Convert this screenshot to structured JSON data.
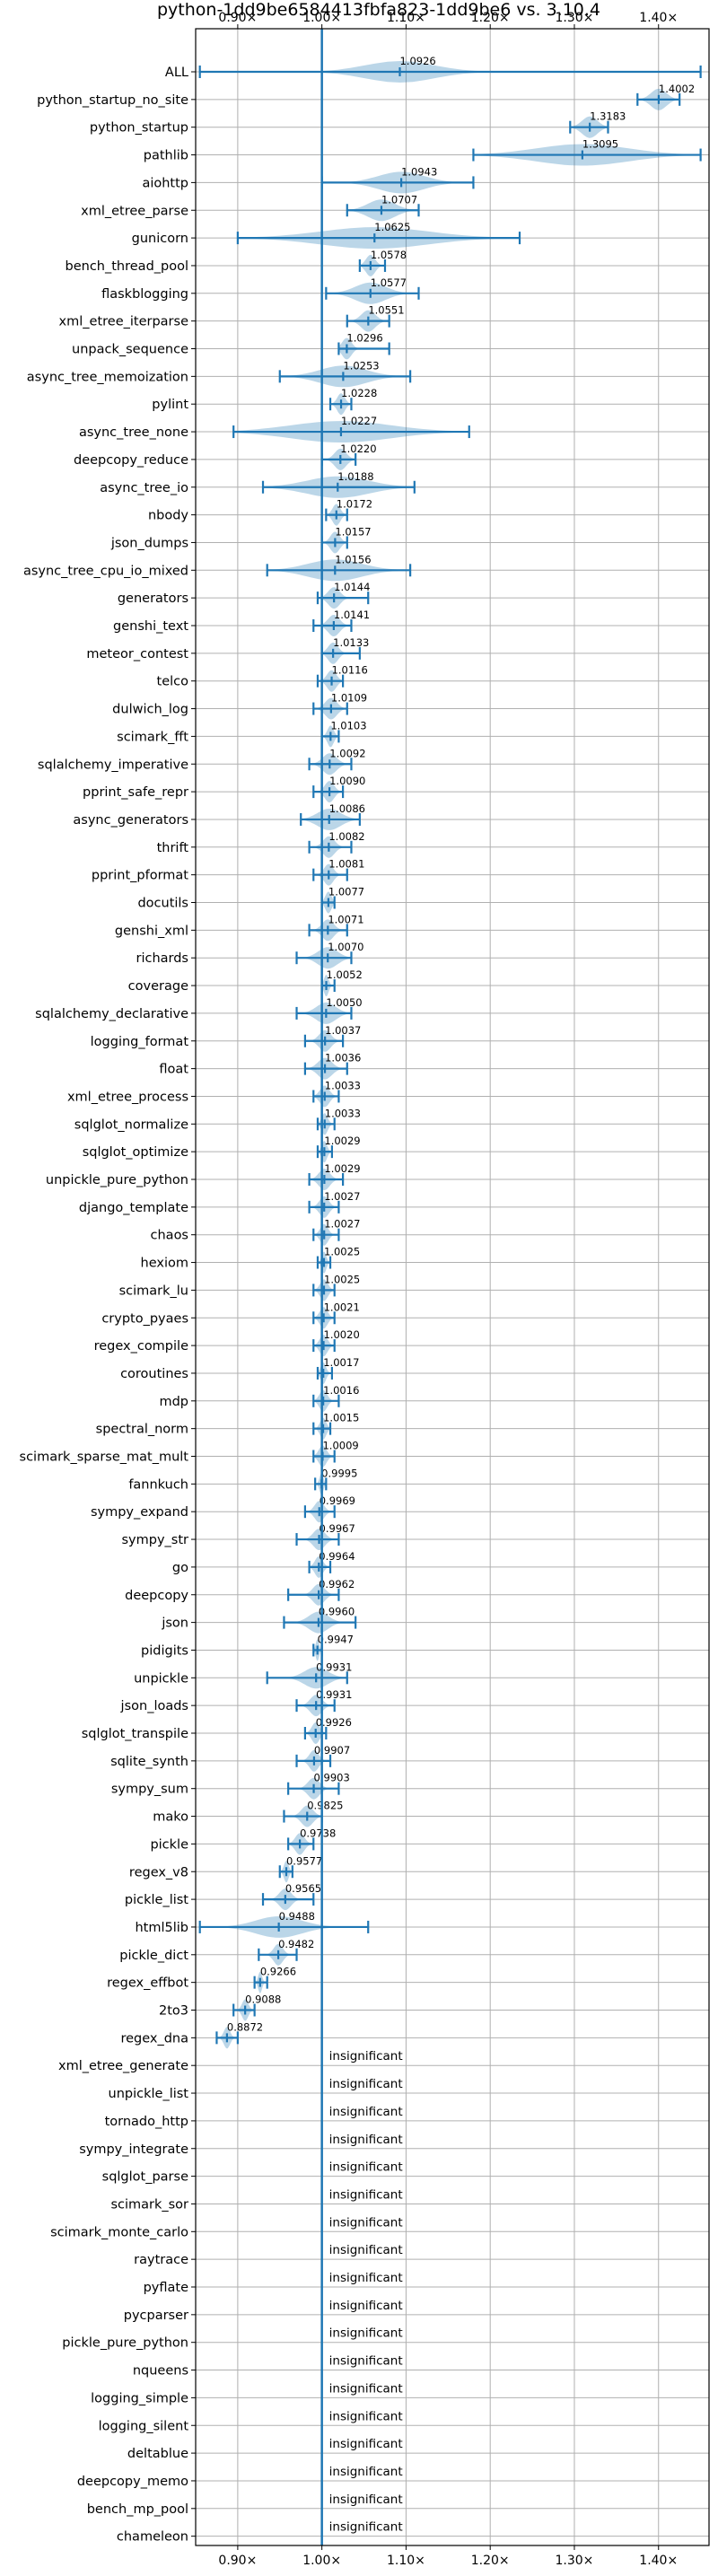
{
  "chart_data": {
    "type": "violin",
    "title": "python-1dd9be6584413fbfa823-1dd9be6 vs. 3.10.4",
    "xlim": [
      0.85,
      1.46
    ],
    "x_ticks": [
      0.9,
      1.0,
      1.1,
      1.2,
      1.3,
      1.4
    ],
    "x_tick_labels": [
      "0.90×",
      "1.00×",
      "1.10×",
      "1.20×",
      "1.30×",
      "1.40×"
    ],
    "baseline": 1.0,
    "insignificant_label": "insignificant",
    "colors": {
      "accent": "#1f77b4"
    },
    "benchmarks": [
      {
        "name": "ALL",
        "value": 1.0926,
        "label": "1.0926",
        "min": 0.855,
        "max": 1.45,
        "spread": 0.09
      },
      {
        "name": "python_startup_no_site",
        "value": 1.4002,
        "label": "1.4002",
        "min": 1.375,
        "max": 1.425,
        "spread": 0.02
      },
      {
        "name": "python_startup",
        "value": 1.3183,
        "label": "1.3183",
        "min": 1.295,
        "max": 1.34,
        "spread": 0.02
      },
      {
        "name": "pathlib",
        "value": 1.3095,
        "label": "1.3095",
        "min": 1.18,
        "max": 1.45,
        "spread": 0.12
      },
      {
        "name": "aiohttp",
        "value": 1.0943,
        "label": "1.0943",
        "min": 1.0,
        "max": 1.18,
        "spread": 0.06
      },
      {
        "name": "xml_etree_parse",
        "value": 1.0707,
        "label": "1.0707",
        "min": 1.03,
        "max": 1.115,
        "spread": 0.035
      },
      {
        "name": "gunicorn",
        "value": 1.0625,
        "label": "1.0625",
        "min": 0.9,
        "max": 1.235,
        "spread": 0.14
      },
      {
        "name": "bench_thread_pool",
        "value": 1.0578,
        "label": "1.0578",
        "min": 1.045,
        "max": 1.075,
        "spread": 0.012
      },
      {
        "name": "flaskblogging",
        "value": 1.0577,
        "label": "1.0577",
        "min": 1.005,
        "max": 1.115,
        "spread": 0.04
      },
      {
        "name": "xml_etree_iterparse",
        "value": 1.0551,
        "label": "1.0551",
        "min": 1.03,
        "max": 1.08,
        "spread": 0.018
      },
      {
        "name": "unpack_sequence",
        "value": 1.0296,
        "label": "1.0296",
        "min": 1.02,
        "max": 1.08,
        "spread": 0.012
      },
      {
        "name": "async_tree_memoization",
        "value": 1.0253,
        "label": "1.0253",
        "min": 0.95,
        "max": 1.105,
        "spread": 0.06
      },
      {
        "name": "pylint",
        "value": 1.0228,
        "label": "1.0228",
        "min": 1.01,
        "max": 1.035,
        "spread": 0.01
      },
      {
        "name": "async_tree_none",
        "value": 1.0227,
        "label": "1.0227",
        "min": 0.895,
        "max": 1.175,
        "spread": 0.13
      },
      {
        "name": "deepcopy_reduce",
        "value": 1.022,
        "label": "1.0220",
        "min": 1.0,
        "max": 1.04,
        "spread": 0.015
      },
      {
        "name": "async_tree_io",
        "value": 1.0188,
        "label": "1.0188",
        "min": 0.93,
        "max": 1.11,
        "spread": 0.08
      },
      {
        "name": "nbody",
        "value": 1.0172,
        "label": "1.0172",
        "min": 1.005,
        "max": 1.03,
        "spread": 0.01
      },
      {
        "name": "json_dumps",
        "value": 1.0157,
        "label": "1.0157",
        "min": 1.0,
        "max": 1.03,
        "spread": 0.012
      },
      {
        "name": "async_tree_cpu_io_mixed",
        "value": 1.0156,
        "label": "1.0156",
        "min": 0.935,
        "max": 1.105,
        "spread": 0.07
      },
      {
        "name": "generators",
        "value": 1.0144,
        "label": "1.0144",
        "min": 0.995,
        "max": 1.055,
        "spread": 0.015
      },
      {
        "name": "genshi_text",
        "value": 1.0141,
        "label": "1.0141",
        "min": 0.99,
        "max": 1.035,
        "spread": 0.015
      },
      {
        "name": "meteor_contest",
        "value": 1.0133,
        "label": "1.0133",
        "min": 1.0,
        "max": 1.045,
        "spread": 0.013
      },
      {
        "name": "telco",
        "value": 1.0116,
        "label": "1.0116",
        "min": 0.995,
        "max": 1.025,
        "spread": 0.012
      },
      {
        "name": "dulwich_log",
        "value": 1.0109,
        "label": "1.0109",
        "min": 0.99,
        "max": 1.03,
        "spread": 0.015
      },
      {
        "name": "scimark_fft",
        "value": 1.0103,
        "label": "1.0103",
        "min": 1.0,
        "max": 1.02,
        "spread": 0.008
      },
      {
        "name": "sqlalchemy_imperative",
        "value": 1.0092,
        "label": "1.0092",
        "min": 0.985,
        "max": 1.035,
        "spread": 0.018
      },
      {
        "name": "pprint_safe_repr",
        "value": 1.009,
        "label": "1.0090",
        "min": 0.99,
        "max": 1.025,
        "spread": 0.012
      },
      {
        "name": "async_generators",
        "value": 1.0086,
        "label": "1.0086",
        "min": 0.975,
        "max": 1.045,
        "spread": 0.03
      },
      {
        "name": "thrift",
        "value": 1.0082,
        "label": "1.0082",
        "min": 0.985,
        "max": 1.035,
        "spread": 0.015
      },
      {
        "name": "pprint_pformat",
        "value": 1.0081,
        "label": "1.0081",
        "min": 0.99,
        "max": 1.03,
        "spread": 0.012
      },
      {
        "name": "docutils",
        "value": 1.0077,
        "label": "1.0077",
        "min": 1.0,
        "max": 1.015,
        "spread": 0.008
      },
      {
        "name": "genshi_xml",
        "value": 1.0071,
        "label": "1.0071",
        "min": 0.985,
        "max": 1.03,
        "spread": 0.015
      },
      {
        "name": "richards",
        "value": 1.007,
        "label": "1.0070",
        "min": 0.97,
        "max": 1.035,
        "spread": 0.025
      },
      {
        "name": "coverage",
        "value": 1.0052,
        "label": "1.0052",
        "min": 1.0,
        "max": 1.015,
        "spread": 0.006
      },
      {
        "name": "sqlalchemy_declarative",
        "value": 1.005,
        "label": "1.0050",
        "min": 0.97,
        "max": 1.035,
        "spread": 0.025
      },
      {
        "name": "logging_format",
        "value": 1.0037,
        "label": "1.0037",
        "min": 0.98,
        "max": 1.025,
        "spread": 0.015
      },
      {
        "name": "float",
        "value": 1.0036,
        "label": "1.0036",
        "min": 0.98,
        "max": 1.03,
        "spread": 0.018
      },
      {
        "name": "xml_etree_process",
        "value": 1.0033,
        "label": "1.0033",
        "min": 0.99,
        "max": 1.02,
        "spread": 0.012
      },
      {
        "name": "sqlglot_normalize",
        "value": 1.0033,
        "label": "1.0033",
        "min": 0.995,
        "max": 1.015,
        "spread": 0.008
      },
      {
        "name": "sqlglot_optimize",
        "value": 1.0029,
        "label": "1.0029",
        "min": 0.995,
        "max": 1.012,
        "spread": 0.007
      },
      {
        "name": "unpickle_pure_python",
        "value": 1.0029,
        "label": "1.0029",
        "min": 0.985,
        "max": 1.025,
        "spread": 0.014
      },
      {
        "name": "django_template",
        "value": 1.0027,
        "label": "1.0027",
        "min": 0.985,
        "max": 1.02,
        "spread": 0.012
      },
      {
        "name": "chaos",
        "value": 1.0027,
        "label": "1.0027",
        "min": 0.99,
        "max": 1.02,
        "spread": 0.01
      },
      {
        "name": "hexiom",
        "value": 1.0025,
        "label": "1.0025",
        "min": 0.995,
        "max": 1.01,
        "spread": 0.006
      },
      {
        "name": "scimark_lu",
        "value": 1.0025,
        "label": "1.0025",
        "min": 0.99,
        "max": 1.015,
        "spread": 0.01
      },
      {
        "name": "crypto_pyaes",
        "value": 1.0021,
        "label": "1.0021",
        "min": 0.99,
        "max": 1.015,
        "spread": 0.01
      },
      {
        "name": "regex_compile",
        "value": 1.002,
        "label": "1.0020",
        "min": 0.99,
        "max": 1.015,
        "spread": 0.01
      },
      {
        "name": "coroutines",
        "value": 1.0017,
        "label": "1.0017",
        "min": 0.995,
        "max": 1.012,
        "spread": 0.007
      },
      {
        "name": "mdp",
        "value": 1.0016,
        "label": "1.0016",
        "min": 0.99,
        "max": 1.02,
        "spread": 0.01
      },
      {
        "name": "spectral_norm",
        "value": 1.0015,
        "label": "1.0015",
        "min": 0.99,
        "max": 1.01,
        "spread": 0.008
      },
      {
        "name": "scimark_sparse_mat_mult",
        "value": 1.0009,
        "label": "1.0009",
        "min": 0.99,
        "max": 1.015,
        "spread": 0.01
      },
      {
        "name": "fannkuch",
        "value": 0.9995,
        "label": "0.9995",
        "min": 0.992,
        "max": 1.005,
        "spread": 0.005
      },
      {
        "name": "sympy_expand",
        "value": 0.9969,
        "label": "0.9969",
        "min": 0.98,
        "max": 1.015,
        "spread": 0.012
      },
      {
        "name": "sympy_str",
        "value": 0.9967,
        "label": "0.9967",
        "min": 0.97,
        "max": 1.02,
        "spread": 0.015
      },
      {
        "name": "go",
        "value": 0.9964,
        "label": "0.9964",
        "min": 0.985,
        "max": 1.01,
        "spread": 0.01
      },
      {
        "name": "deepcopy",
        "value": 0.9962,
        "label": "0.9962",
        "min": 0.96,
        "max": 1.02,
        "spread": 0.015
      },
      {
        "name": "json",
        "value": 0.996,
        "label": "0.9960",
        "min": 0.955,
        "max": 1.04,
        "spread": 0.025
      },
      {
        "name": "pidigits",
        "value": 0.9947,
        "label": "0.9947",
        "min": 0.99,
        "max": 1.0,
        "spread": 0.004
      },
      {
        "name": "unpickle",
        "value": 0.9931,
        "label": "0.9931",
        "min": 0.935,
        "max": 1.03,
        "spread": 0.03
      },
      {
        "name": "json_loads",
        "value": 0.9931,
        "label": "0.9931",
        "min": 0.97,
        "max": 1.015,
        "spread": 0.015
      },
      {
        "name": "sqlglot_transpile",
        "value": 0.9926,
        "label": "0.9926",
        "min": 0.98,
        "max": 1.005,
        "spread": 0.01
      },
      {
        "name": "sqlite_synth",
        "value": 0.9907,
        "label": "0.9907",
        "min": 0.97,
        "max": 1.01,
        "spread": 0.012
      },
      {
        "name": "sympy_sum",
        "value": 0.9903,
        "label": "0.9903",
        "min": 0.96,
        "max": 1.02,
        "spread": 0.015
      },
      {
        "name": "mako",
        "value": 0.9825,
        "label": "0.9825",
        "min": 0.955,
        "max": 1.0,
        "spread": 0.015
      },
      {
        "name": "pickle",
        "value": 0.9738,
        "label": "0.9738",
        "min": 0.96,
        "max": 0.99,
        "spread": 0.012
      },
      {
        "name": "regex_v8",
        "value": 0.9577,
        "label": "0.9577",
        "min": 0.95,
        "max": 0.965,
        "spread": 0.006
      },
      {
        "name": "pickle_list",
        "value": 0.9565,
        "label": "0.9565",
        "min": 0.93,
        "max": 0.99,
        "spread": 0.015
      },
      {
        "name": "html5lib",
        "value": 0.9488,
        "label": "0.9488",
        "min": 0.855,
        "max": 1.055,
        "spread": 0.06
      },
      {
        "name": "pickle_dict",
        "value": 0.9482,
        "label": "0.9482",
        "min": 0.925,
        "max": 0.97,
        "spread": 0.012
      },
      {
        "name": "regex_effbot",
        "value": 0.9266,
        "label": "0.9266",
        "min": 0.92,
        "max": 0.935,
        "spread": 0.005
      },
      {
        "name": "2to3",
        "value": 0.9088,
        "label": "0.9088",
        "min": 0.895,
        "max": 0.92,
        "spread": 0.008
      },
      {
        "name": "regex_dna",
        "value": 0.8872,
        "label": "0.8872",
        "min": 0.875,
        "max": 0.9,
        "spread": 0.008
      },
      {
        "name": "xml_etree_generate",
        "value": null
      },
      {
        "name": "unpickle_list",
        "value": null
      },
      {
        "name": "tornado_http",
        "value": null
      },
      {
        "name": "sympy_integrate",
        "value": null
      },
      {
        "name": "sqlglot_parse",
        "value": null
      },
      {
        "name": "scimark_sor",
        "value": null
      },
      {
        "name": "scimark_monte_carlo",
        "value": null
      },
      {
        "name": "raytrace",
        "value": null
      },
      {
        "name": "pyflate",
        "value": null
      },
      {
        "name": "pycparser",
        "value": null
      },
      {
        "name": "pickle_pure_python",
        "value": null
      },
      {
        "name": "nqueens",
        "value": null
      },
      {
        "name": "logging_simple",
        "value": null
      },
      {
        "name": "logging_silent",
        "value": null
      },
      {
        "name": "deltablue",
        "value": null
      },
      {
        "name": "deepcopy_memo",
        "value": null
      },
      {
        "name": "bench_mp_pool",
        "value": null
      },
      {
        "name": "chameleon",
        "value": null
      }
    ]
  }
}
